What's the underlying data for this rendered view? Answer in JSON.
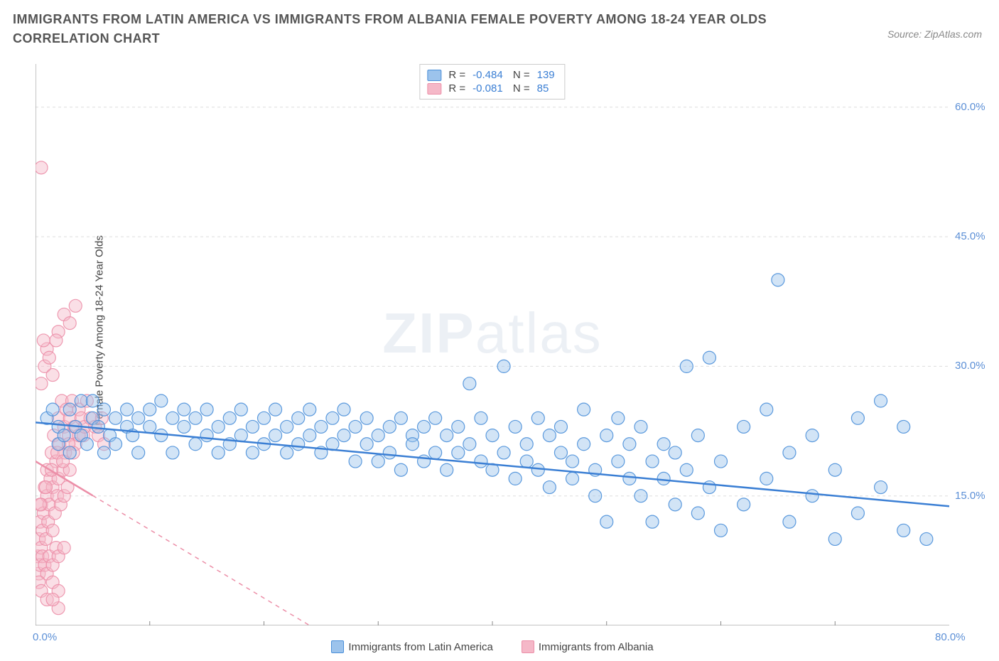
{
  "title": "IMMIGRANTS FROM LATIN AMERICA VS IMMIGRANTS FROM ALBANIA FEMALE POVERTY AMONG 18-24 YEAR OLDS CORRELATION CHART",
  "source": "Source: ZipAtlas.com",
  "y_axis_label": "Female Poverty Among 18-24 Year Olds",
  "watermark_bold": "ZIP",
  "watermark_light": "atlas",
  "chart": {
    "type": "scatter",
    "background_color": "#ffffff",
    "grid_color": "#dddddd",
    "axis_color": "#888888",
    "xlim": [
      0,
      80
    ],
    "ylim": [
      0,
      65
    ],
    "y_ticks": [
      15.0,
      30.0,
      45.0,
      60.0
    ],
    "y_tick_labels": [
      "15.0%",
      "30.0%",
      "45.0%",
      "60.0%"
    ],
    "y_tick_color": "#5b8fd6",
    "x_origin_label": "0.0%",
    "x_max_label": "80.0%",
    "x_tick_color": "#5b8fd6",
    "x_minor_ticks": [
      10,
      20,
      30,
      40,
      50,
      60,
      70
    ],
    "marker_radius": 9,
    "marker_opacity": 0.45,
    "marker_stroke_opacity": 0.9,
    "trend_line_width": 2.5
  },
  "series": [
    {
      "name": "Immigrants from Latin America",
      "color_fill": "#9cc3ec",
      "color_stroke": "#4a8fd9",
      "trend_color": "#3b7fd4",
      "R": "-0.484",
      "N": "139",
      "trend": {
        "x1": 0,
        "y1": 23.5,
        "x2": 80,
        "y2": 13.8,
        "dashed": false
      },
      "points": [
        [
          1,
          24
        ],
        [
          1.5,
          25
        ],
        [
          2,
          23
        ],
        [
          2,
          21
        ],
        [
          2.5,
          22
        ],
        [
          3,
          25
        ],
        [
          3,
          20
        ],
        [
          3.5,
          23
        ],
        [
          4,
          26
        ],
        [
          4,
          22
        ],
        [
          4.5,
          21
        ],
        [
          5,
          24
        ],
        [
          5,
          26
        ],
        [
          5.5,
          23
        ],
        [
          6,
          20
        ],
        [
          6,
          25
        ],
        [
          6.5,
          22
        ],
        [
          7,
          24
        ],
        [
          7,
          21
        ],
        [
          8,
          23
        ],
        [
          8,
          25
        ],
        [
          8.5,
          22
        ],
        [
          9,
          24
        ],
        [
          9,
          20
        ],
        [
          10,
          25
        ],
        [
          10,
          23
        ],
        [
          11,
          26
        ],
        [
          11,
          22
        ],
        [
          12,
          24
        ],
        [
          12,
          20
        ],
        [
          13,
          23
        ],
        [
          13,
          25
        ],
        [
          14,
          21
        ],
        [
          14,
          24
        ],
        [
          15,
          22
        ],
        [
          15,
          25
        ],
        [
          16,
          20
        ],
        [
          16,
          23
        ],
        [
          17,
          24
        ],
        [
          17,
          21
        ],
        [
          18,
          25
        ],
        [
          18,
          22
        ],
        [
          19,
          23
        ],
        [
          19,
          20
        ],
        [
          20,
          24
        ],
        [
          20,
          21
        ],
        [
          21,
          22
        ],
        [
          21,
          25
        ],
        [
          22,
          23
        ],
        [
          22,
          20
        ],
        [
          23,
          24
        ],
        [
          23,
          21
        ],
        [
          24,
          22
        ],
        [
          24,
          25
        ],
        [
          25,
          23
        ],
        [
          25,
          20
        ],
        [
          26,
          24
        ],
        [
          26,
          21
        ],
        [
          27,
          22
        ],
        [
          27,
          25
        ],
        [
          28,
          23
        ],
        [
          28,
          19
        ],
        [
          29,
          24
        ],
        [
          29,
          21
        ],
        [
          30,
          22
        ],
        [
          30,
          19
        ],
        [
          31,
          23
        ],
        [
          31,
          20
        ],
        [
          32,
          24
        ],
        [
          32,
          18
        ],
        [
          33,
          22
        ],
        [
          33,
          21
        ],
        [
          34,
          23
        ],
        [
          34,
          19
        ],
        [
          35,
          20
        ],
        [
          35,
          24
        ],
        [
          36,
          22
        ],
        [
          36,
          18
        ],
        [
          37,
          23
        ],
        [
          37,
          20
        ],
        [
          38,
          28
        ],
        [
          38,
          21
        ],
        [
          39,
          19
        ],
        [
          39,
          24
        ],
        [
          40,
          22
        ],
        [
          40,
          18
        ],
        [
          41,
          30
        ],
        [
          41,
          20
        ],
        [
          42,
          23
        ],
        [
          42,
          17
        ],
        [
          43,
          21
        ],
        [
          43,
          19
        ],
        [
          44,
          24
        ],
        [
          44,
          18
        ],
        [
          45,
          22
        ],
        [
          45,
          16
        ],
        [
          46,
          20
        ],
        [
          46,
          23
        ],
        [
          47,
          19
        ],
        [
          47,
          17
        ],
        [
          48,
          25
        ],
        [
          48,
          21
        ],
        [
          49,
          18
        ],
        [
          49,
          15
        ],
        [
          50,
          22
        ],
        [
          50,
          12
        ],
        [
          51,
          19
        ],
        [
          51,
          24
        ],
        [
          52,
          17
        ],
        [
          52,
          21
        ],
        [
          53,
          15
        ],
        [
          53,
          23
        ],
        [
          54,
          19
        ],
        [
          54,
          12
        ],
        [
          55,
          21
        ],
        [
          55,
          17
        ],
        [
          56,
          14
        ],
        [
          56,
          20
        ],
        [
          57,
          30
        ],
        [
          57,
          18
        ],
        [
          58,
          22
        ],
        [
          58,
          13
        ],
        [
          59,
          31
        ],
        [
          59,
          16
        ],
        [
          60,
          19
        ],
        [
          60,
          11
        ],
        [
          62,
          23
        ],
        [
          62,
          14
        ],
        [
          64,
          17
        ],
        [
          64,
          25
        ],
        [
          66,
          12
        ],
        [
          66,
          20
        ],
        [
          68,
          15
        ],
        [
          68,
          22
        ],
        [
          70,
          18
        ],
        [
          70,
          10
        ],
        [
          72,
          24
        ],
        [
          72,
          13
        ],
        [
          74,
          26
        ],
        [
          74,
          16
        ],
        [
          76,
          11
        ],
        [
          76,
          23
        ],
        [
          78,
          10
        ],
        [
          65,
          40
        ]
      ]
    },
    {
      "name": "Immigrants from Albania",
      "color_fill": "#f5b8c8",
      "color_stroke": "#ec8fa8",
      "trend_color": "#ec8fa8",
      "R": "-0.081",
      "N": " 85",
      "trend": {
        "x1": 0,
        "y1": 19.0,
        "x2": 24,
        "y2": 0,
        "dashed": true,
        "solid_until_x": 5
      },
      "points": [
        [
          0.2,
          8
        ],
        [
          0.3,
          10
        ],
        [
          0.4,
          12
        ],
        [
          0.5,
          9
        ],
        [
          0.5,
          14
        ],
        [
          0.6,
          11
        ],
        [
          0.7,
          13
        ],
        [
          0.8,
          16
        ],
        [
          0.9,
          10
        ],
        [
          1.0,
          15
        ],
        [
          1.0,
          18
        ],
        [
          1.1,
          12
        ],
        [
          1.2,
          14
        ],
        [
          1.3,
          17
        ],
        [
          1.4,
          20
        ],
        [
          1.5,
          11
        ],
        [
          1.5,
          16
        ],
        [
          1.6,
          22
        ],
        [
          1.7,
          13
        ],
        [
          1.8,
          19
        ],
        [
          1.9,
          15
        ],
        [
          2.0,
          24
        ],
        [
          2.0,
          17
        ],
        [
          2.1,
          21
        ],
        [
          2.2,
          14
        ],
        [
          2.3,
          26
        ],
        [
          2.4,
          18
        ],
        [
          2.5,
          23
        ],
        [
          2.5,
          15
        ],
        [
          2.6,
          20
        ],
        [
          2.7,
          25
        ],
        [
          2.8,
          16
        ],
        [
          2.9,
          22
        ],
        [
          3.0,
          24
        ],
        [
          3.0,
          18
        ],
        [
          3.2,
          26
        ],
        [
          3.4,
          23
        ],
        [
          3.5,
          21
        ],
        [
          3.8,
          25
        ],
        [
          4.0,
          24
        ],
        [
          4.2,
          22
        ],
        [
          4.5,
          26
        ],
        [
          0.3,
          6
        ],
        [
          0.4,
          7
        ],
        [
          0.6,
          8
        ],
        [
          0.8,
          7
        ],
        [
          1.0,
          6
        ],
        [
          1.2,
          8
        ],
        [
          1.5,
          7
        ],
        [
          1.8,
          9
        ],
        [
          2.0,
          8
        ],
        [
          2.5,
          9
        ],
        [
          0.5,
          28
        ],
        [
          0.8,
          30
        ],
        [
          1.0,
          32
        ],
        [
          1.5,
          29
        ],
        [
          2.0,
          34
        ],
        [
          2.5,
          36
        ],
        [
          3.0,
          35
        ],
        [
          3.5,
          37
        ],
        [
          0.3,
          5
        ],
        [
          0.5,
          4
        ],
        [
          1.0,
          3
        ],
        [
          1.5,
          5
        ],
        [
          2.0,
          4
        ],
        [
          0.7,
          33
        ],
        [
          1.2,
          31
        ],
        [
          1.8,
          33
        ],
        [
          0.4,
          14
        ],
        [
          0.9,
          16
        ],
        [
          1.4,
          18
        ],
        [
          1.9,
          20
        ],
        [
          2.4,
          19
        ],
        [
          2.9,
          21
        ],
        [
          3.3,
          20
        ],
        [
          3.8,
          22
        ],
        [
          4.3,
          23
        ],
        [
          4.8,
          24
        ],
        [
          5.2,
          23
        ],
        [
          5.5,
          22
        ],
        [
          5.8,
          24
        ],
        [
          6.0,
          21
        ],
        [
          0.5,
          53
        ],
        [
          2.0,
          2
        ],
        [
          1.5,
          3
        ]
      ]
    }
  ],
  "legend_bottom": [
    {
      "label": "Immigrants from Latin America",
      "swatch": "#9cc3ec",
      "border": "#4a8fd9"
    },
    {
      "label": "Immigrants from Albania",
      "swatch": "#f5b8c8",
      "border": "#ec8fa8"
    }
  ]
}
